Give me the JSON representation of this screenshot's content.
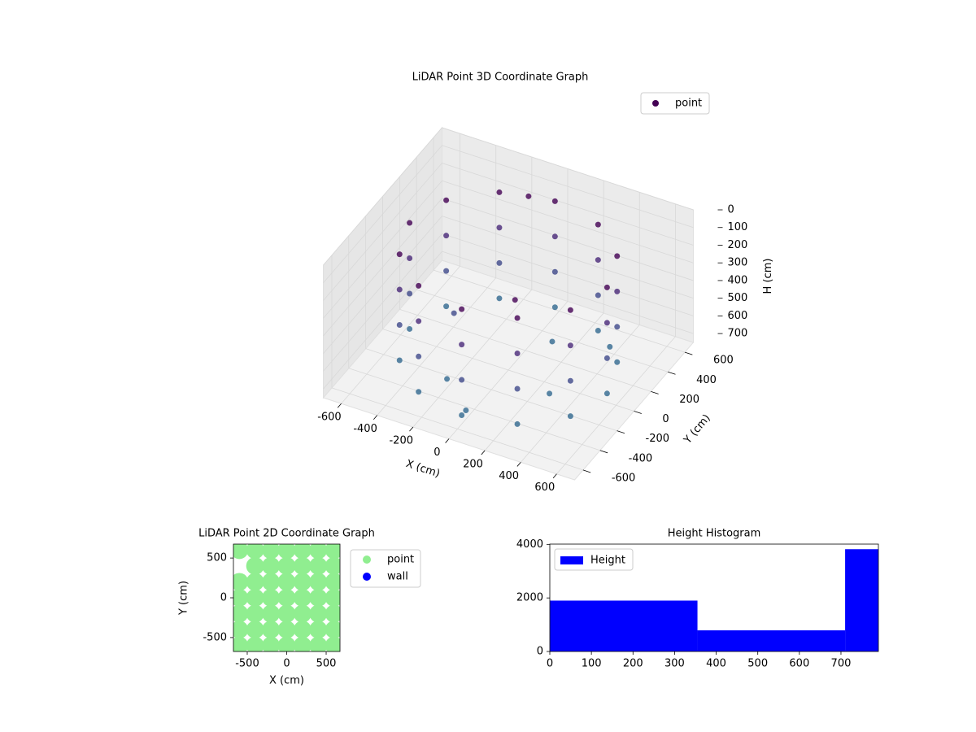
{
  "chart_data": [
    {
      "type": "scatter3d",
      "title": "LiDAR Point 3D Coordinate Graph",
      "xlabel": "X (cm)",
      "ylabel": "Y (cm)",
      "zlabel": "H (cm)",
      "xlim": [
        -700,
        700
      ],
      "ylim": [
        -700,
        700
      ],
      "zlim": [
        750,
        0
      ],
      "xticks": [
        -600,
        -400,
        -200,
        0,
        200,
        400,
        600
      ],
      "yticks": [
        -600,
        -400,
        -200,
        0,
        200,
        400,
        600
      ],
      "zticks": [
        0,
        100,
        200,
        300,
        400,
        500,
        600,
        700
      ],
      "colormap": "viridis",
      "legend": "upper right",
      "series": [
        {
          "name": "point",
          "color": "#440154",
          "x": [
            550,
            476,
            275,
            0,
            -275,
            -476,
            -550,
            -476,
            -275,
            0,
            275,
            476,
            550,
            476,
            275,
            0,
            -275,
            -476,
            -550,
            -476,
            -275,
            0,
            275,
            476,
            550,
            476,
            275,
            0,
            -275,
            -476,
            -550,
            -476,
            -275,
            0,
            275,
            476,
            550,
            476,
            275,
            0,
            -275,
            -476,
            -550,
            -476,
            -275,
            0,
            275,
            476,
            -200,
            150,
            300,
            -350,
            0,
            400,
            -100,
            250
          ],
          "y": [
            0,
            275,
            476,
            550,
            476,
            275,
            0,
            -275,
            -476,
            -550,
            -476,
            -275,
            0,
            275,
            476,
            550,
            476,
            275,
            0,
            -275,
            -476,
            -550,
            -476,
            -275,
            0,
            275,
            476,
            550,
            476,
            275,
            0,
            -275,
            -476,
            -550,
            -476,
            -275,
            0,
            275,
            476,
            550,
            476,
            275,
            0,
            -275,
            -476,
            -550,
            -476,
            -275,
            -300,
            200,
            -150,
            100,
            -500,
            350,
            450,
            -450
          ],
          "h": [
            100,
            100,
            100,
            100,
            100,
            100,
            100,
            100,
            100,
            100,
            100,
            100,
            300,
            300,
            300,
            300,
            300,
            300,
            300,
            300,
            300,
            300,
            300,
            300,
            500,
            500,
            500,
            500,
            500,
            500,
            500,
            500,
            500,
            500,
            500,
            500,
            700,
            700,
            700,
            700,
            700,
            700,
            700,
            700,
            700,
            700,
            700,
            700,
            700,
            650,
            700,
            600,
            700,
            680,
            50,
            20
          ]
        }
      ]
    },
    {
      "type": "scatter",
      "title": "LiDAR Point 2D Coordinate Graph",
      "xlabel": "X (cm)",
      "ylabel": "Y (cm)",
      "xlim": [
        -675,
        675
      ],
      "ylim": [
        -675,
        675
      ],
      "xticks": [
        -500,
        0,
        500
      ],
      "yticks": [
        -500,
        0,
        500
      ],
      "legend": "outside right",
      "series": [
        {
          "name": "point",
          "color": "#90ee90",
          "x": [
            -600,
            -400,
            -200,
            0,
            200,
            400,
            600,
            -400,
            -200,
            0,
            200,
            400,
            600,
            -600,
            -400,
            -200,
            0,
            200,
            400,
            600,
            -600,
            -400,
            -200,
            0,
            200,
            400,
            600,
            -600,
            -400,
            -200,
            0,
            200,
            400,
            600,
            -600,
            -400,
            -200,
            0,
            200,
            400,
            600,
            -600,
            -400,
            -200,
            0,
            200,
            400,
            600
          ],
          "y": [
            600,
            600,
            600,
            600,
            600,
            600,
            600,
            400,
            400,
            400,
            400,
            400,
            400,
            200,
            200,
            200,
            200,
            200,
            200,
            200,
            0,
            0,
            0,
            0,
            0,
            0,
            0,
            -200,
            -200,
            -200,
            -200,
            -200,
            -200,
            -200,
            -400,
            -400,
            -400,
            -400,
            -400,
            -400,
            -400,
            -600,
            -600,
            -600,
            -600,
            -600,
            -600,
            -600
          ]
        },
        {
          "name": "wall",
          "color": "#0000ff",
          "x": [],
          "y": []
        }
      ]
    },
    {
      "type": "histogram",
      "title": "Height Histogram",
      "bins": [
        0,
        355,
        710,
        1065
      ],
      "xlim": [
        0,
        790
      ],
      "ylim": [
        0,
        4010
      ],
      "xticks": [
        0,
        100,
        200,
        300,
        400,
        500,
        600,
        700
      ],
      "yticks": [
        0,
        2000,
        4000
      ],
      "legend": "upper left",
      "series": [
        {
          "name": "Height",
          "color": "#0000ff",
          "values": [
            1900,
            790,
            3820
          ]
        }
      ]
    }
  ]
}
